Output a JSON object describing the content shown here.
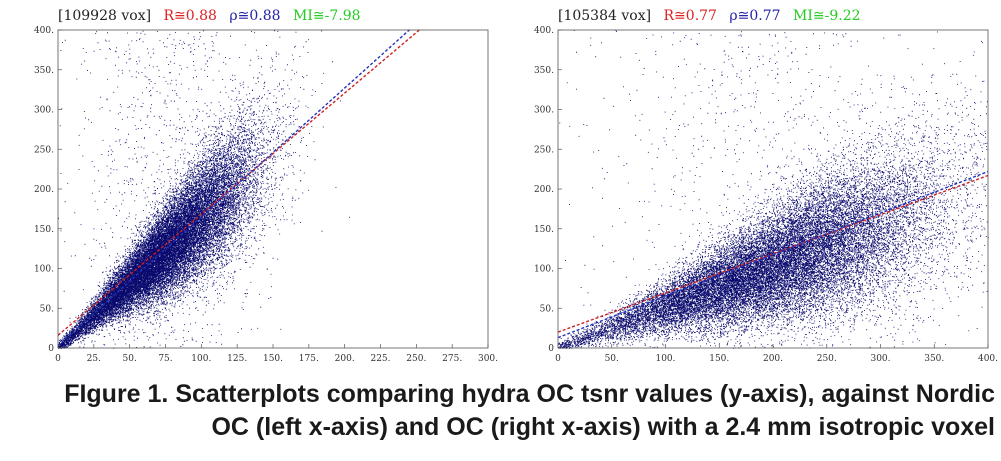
{
  "chart_data": [
    {
      "type": "scatter",
      "header": {
        "vox": "[109928 vox]",
        "r": "R≅0.88",
        "rho": "ρ≅0.88",
        "mi": "MI≅-7.98"
      },
      "xlim": [
        0,
        300
      ],
      "ylim": [
        0,
        400
      ],
      "x_ticks": [
        "0",
        "25.",
        "50.",
        "75.",
        "100.",
        "125.",
        "150.",
        "175.",
        "200.",
        "225.",
        "250.",
        "275.",
        "300."
      ],
      "y_ticks": [
        "0",
        "50.",
        "100.",
        "150.",
        "200.",
        "250.",
        "300.",
        "350.",
        "400."
      ],
      "n_points": 109928,
      "cloud": {
        "x_center": 75,
        "x_spread": 32,
        "x_max": 230,
        "slope": 1.65,
        "scatter_frac": 0.22
      },
      "fit_lines": [
        {
          "color": "#cc2222",
          "x": [
            0,
            300
          ],
          "y": [
            16,
            473
          ]
        },
        {
          "color": "#2233bb",
          "x": [
            0,
            300
          ],
          "y": [
            3,
            489
          ]
        }
      ],
      "point_color": "#0a0a6e",
      "grid": false
    },
    {
      "type": "scatter",
      "header": {
        "vox": "[105384 vox]",
        "r": "R≅0.77",
        "rho": "ρ≅0.77",
        "mi": "MI≅-9.22"
      },
      "xlim": [
        0,
        400
      ],
      "ylim": [
        0,
        400
      ],
      "x_ticks": [
        "0",
        "50.",
        "100.",
        "150.",
        "200.",
        "250.",
        "300.",
        "350.",
        "400."
      ],
      "y_ticks": [
        "0",
        "50.",
        "100.",
        "150.",
        "200.",
        "250.",
        "300.",
        "350.",
        "400."
      ],
      "n_points": 105384,
      "cloud": {
        "x_center": 200,
        "x_spread": 80,
        "x_max": 400,
        "slope": 0.52,
        "scatter_frac": 0.33
      },
      "fit_lines": [
        {
          "color": "#cc2222",
          "x": [
            0,
            400
          ],
          "y": [
            20,
            217
          ]
        },
        {
          "color": "#2233bb",
          "x": [
            0,
            400
          ],
          "y": [
            13,
            222
          ]
        }
      ],
      "point_color": "#0a0a6e",
      "grid": false
    }
  ],
  "caption": {
    "line1": "FIgure 1. Scatterplots comparing hydra OC tsnr values (y-axis), against Nordic",
    "line2": "OC (left x-axis) and OC (right x-axis) with a 2.4 mm isotropic voxel"
  },
  "colors": {
    "r": "#dd2222",
    "rho": "#2222aa",
    "mi": "#22cc22",
    "vox": "#222222"
  }
}
